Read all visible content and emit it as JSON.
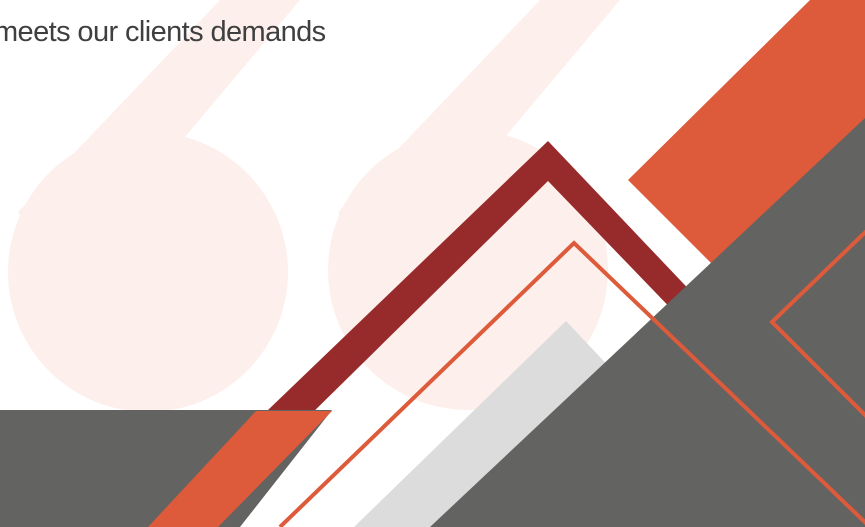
{
  "slide": {
    "tagline": "meets our clients demands"
  },
  "colors": {
    "accent_orange": "#dd5a3a",
    "dark_red": "#972a2a",
    "dark_gray": "#636362",
    "light_gray": "#dcdcdc",
    "quote_mark": "#fdf0ec",
    "text": "#3f3f3f"
  },
  "decoration": {
    "watermark_icon": "quotation-mark-icon"
  }
}
